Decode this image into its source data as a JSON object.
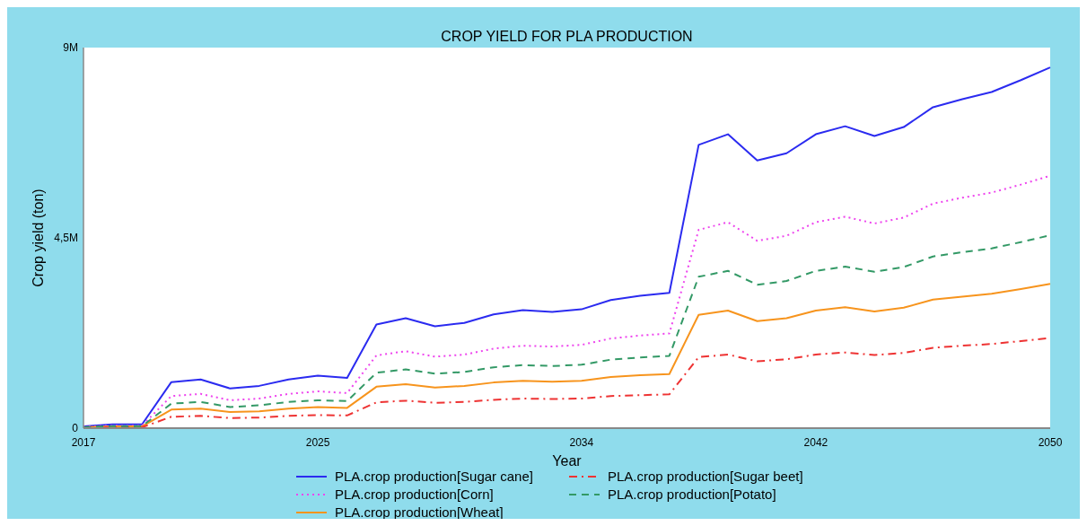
{
  "chart_data": {
    "type": "line",
    "title": "CROP YIELD FOR PLA PRODUCTION",
    "xlabel": "Year",
    "ylabel": "Crop yield (ton)",
    "x": [
      2017,
      2018,
      2019,
      2020,
      2021,
      2022,
      2023,
      2024,
      2025,
      2026,
      2027,
      2028,
      2029,
      2030,
      2031,
      2032,
      2033,
      2034,
      2035,
      2036,
      2037,
      2038,
      2039,
      2040,
      2041,
      2042,
      2043,
      2044,
      2045,
      2046,
      2047,
      2048,
      2049,
      2050
    ],
    "xlim": [
      2017,
      2050
    ],
    "xticks": [
      2017,
      2025,
      2034,
      2042,
      2050
    ],
    "ylim": [
      0,
      9000000
    ],
    "yticks": [
      {
        "value": 0,
        "label": "0"
      },
      {
        "value": 4500000,
        "label": "4,5M"
      },
      {
        "value": 9000000,
        "label": "9M"
      }
    ],
    "grid": false,
    "legend": "bottom",
    "series": [
      {
        "name": "PLA.crop production[Sugar cane]",
        "color": "#2b2bf0",
        "line_style": "solid",
        "values": [
          40000,
          90000,
          90000,
          1090000,
          1150000,
          940000,
          1000000,
          1150000,
          1240000,
          1190000,
          2450000,
          2600000,
          2410000,
          2490000,
          2690000,
          2790000,
          2750000,
          2810000,
          3030000,
          3130000,
          3200000,
          6700000,
          6950000,
          6330000,
          6500000,
          6950000,
          7140000,
          6910000,
          7120000,
          7590000,
          7780000,
          7950000,
          8230000,
          8530000
        ]
      },
      {
        "name": "PLA.crop production[Corn]",
        "color": "#ee44ee",
        "line_style": "dotted",
        "values": [
          30000,
          60000,
          60000,
          760000,
          810000,
          660000,
          700000,
          810000,
          870000,
          830000,
          1720000,
          1820000,
          1690000,
          1740000,
          1880000,
          1950000,
          1930000,
          1970000,
          2120000,
          2190000,
          2240000,
          4690000,
          4870000,
          4430000,
          4550000,
          4870000,
          5000000,
          4840000,
          4980000,
          5310000,
          5450000,
          5570000,
          5760000,
          5970000
        ]
      },
      {
        "name": "PLA.crop production[Wheat]",
        "color": "#f7941d",
        "line_style": "solid",
        "values": [
          20000,
          40000,
          40000,
          440000,
          460000,
          380000,
          400000,
          460000,
          500000,
          480000,
          980000,
          1040000,
          960000,
          1000000,
          1080000,
          1120000,
          1100000,
          1120000,
          1210000,
          1250000,
          1280000,
          2680000,
          2780000,
          2530000,
          2600000,
          2780000,
          2860000,
          2760000,
          2850000,
          3040000,
          3110000,
          3180000,
          3290000,
          3410000
        ]
      },
      {
        "name": "PLA.crop production[Sugar beet]",
        "color": "#ee3333",
        "line_style": "dashdot",
        "values": [
          10000,
          20000,
          20000,
          270000,
          290000,
          240000,
          250000,
          290000,
          310000,
          300000,
          610000,
          650000,
          600000,
          620000,
          670000,
          700000,
          690000,
          700000,
          760000,
          780000,
          800000,
          1680000,
          1740000,
          1580000,
          1630000,
          1740000,
          1790000,
          1730000,
          1780000,
          1900000,
          1950000,
          1990000,
          2060000,
          2130000
        ]
      },
      {
        "name": "PLA.crop production[Potato]",
        "color": "#339966",
        "line_style": "dashed",
        "values": [
          20000,
          50000,
          50000,
          580000,
          620000,
          500000,
          540000,
          620000,
          660000,
          640000,
          1310000,
          1390000,
          1290000,
          1330000,
          1440000,
          1490000,
          1470000,
          1500000,
          1620000,
          1670000,
          1710000,
          3580000,
          3720000,
          3390000,
          3480000,
          3720000,
          3820000,
          3700000,
          3810000,
          4060000,
          4160000,
          4250000,
          4400000,
          4560000
        ]
      }
    ]
  }
}
